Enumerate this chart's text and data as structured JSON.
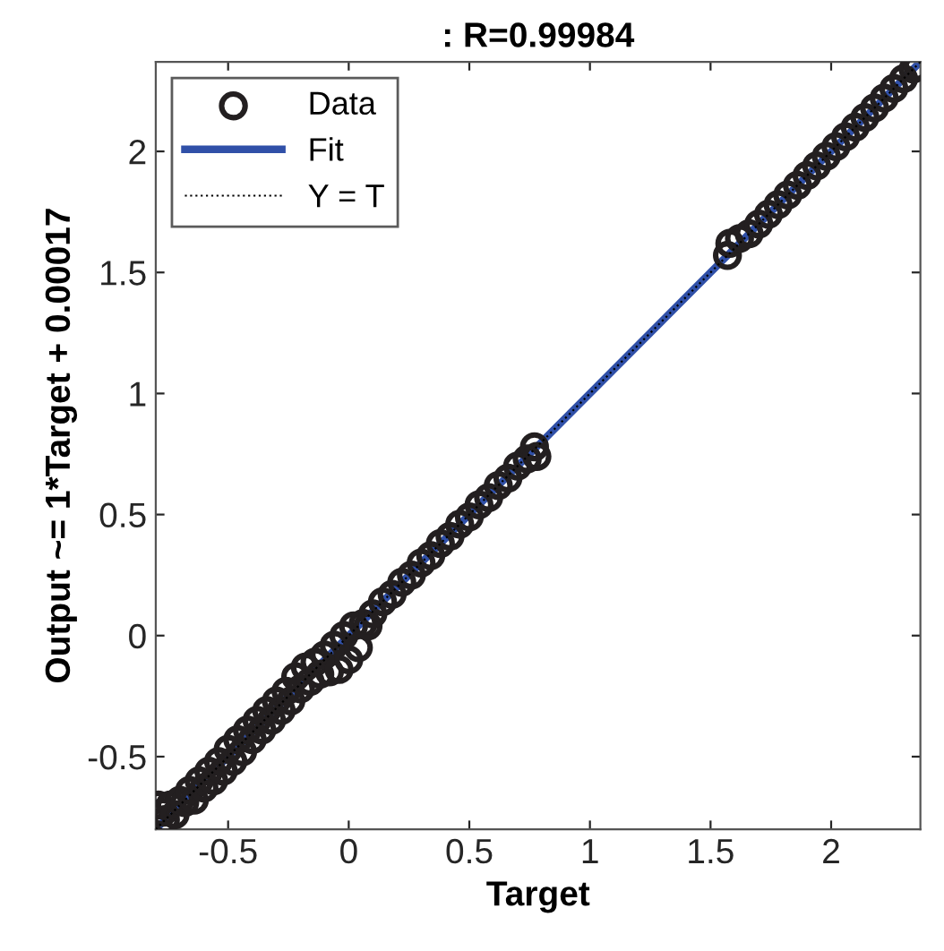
{
  "chart_data": {
    "type": "scatter",
    "title": ": R=0.99984",
    "xlabel": "Target",
    "ylabel": "Output ~= 1*Target + 0.00017",
    "xlim": [
      -0.8,
      2.37
    ],
    "ylim": [
      -0.8,
      2.37
    ],
    "xticks": [
      -0.5,
      0,
      0.5,
      1,
      1.5,
      2
    ],
    "yticks": [
      -0.5,
      0,
      0.5,
      1,
      1.5,
      2
    ],
    "grid": false,
    "legend": "top left",
    "series": [
      {
        "name": "Data",
        "marker": "circle",
        "color": "#231f20",
        "x": [
          -0.79,
          -0.77,
          -0.76,
          -0.74,
          -0.72,
          -0.7,
          -0.68,
          -0.66,
          -0.64,
          -0.62,
          -0.6,
          -0.58,
          -0.56,
          -0.54,
          -0.52,
          -0.5,
          -0.48,
          -0.46,
          -0.44,
          -0.42,
          -0.4,
          -0.38,
          -0.36,
          -0.34,
          -0.32,
          -0.3,
          -0.28,
          -0.26,
          -0.24,
          -0.22,
          -0.2,
          -0.18,
          -0.16,
          -0.14,
          -0.12,
          -0.1,
          -0.08,
          -0.06,
          -0.04,
          -0.02,
          0.0,
          0.02,
          0.04,
          0.06,
          0.08,
          0.1,
          0.14,
          0.18,
          0.22,
          0.26,
          0.3,
          0.34,
          0.38,
          0.42,
          0.46,
          0.5,
          0.54,
          0.58,
          0.62,
          0.66,
          0.7,
          0.74,
          0.77,
          0.78,
          1.57,
          1.58,
          1.62,
          1.66,
          1.7,
          1.74,
          1.78,
          1.82,
          1.86,
          1.9,
          1.94,
          1.98,
          2.02,
          2.06,
          2.1,
          2.14,
          2.18,
          2.22,
          2.26,
          2.3,
          2.34,
          2.36
        ],
        "values": [
          -0.7,
          -0.73,
          -0.76,
          -0.7,
          -0.74,
          -0.68,
          -0.69,
          -0.64,
          -0.68,
          -0.6,
          -0.63,
          -0.56,
          -0.6,
          -0.52,
          -0.56,
          -0.47,
          -0.52,
          -0.43,
          -0.48,
          -0.39,
          -0.43,
          -0.35,
          -0.39,
          -0.31,
          -0.35,
          -0.27,
          -0.31,
          -0.23,
          -0.27,
          -0.17,
          -0.22,
          -0.13,
          -0.19,
          -0.11,
          -0.16,
          -0.08,
          -0.15,
          -0.04,
          -0.14,
          0.0,
          -0.1,
          0.04,
          -0.05,
          0.05,
          0.04,
          0.09,
          0.14,
          0.17,
          0.22,
          0.25,
          0.3,
          0.33,
          0.38,
          0.41,
          0.46,
          0.49,
          0.54,
          0.57,
          0.62,
          0.65,
          0.7,
          0.73,
          0.78,
          0.74,
          1.57,
          1.62,
          1.64,
          1.66,
          1.7,
          1.74,
          1.78,
          1.82,
          1.86,
          1.9,
          1.94,
          1.98,
          2.02,
          2.06,
          2.1,
          2.14,
          2.18,
          2.22,
          2.26,
          2.3,
          2.34,
          2.35
        ]
      },
      {
        "name": "Fit",
        "type": "line",
        "line_style": "solid",
        "color": "#3050a8",
        "x": [
          -0.8,
          2.37
        ],
        "values": [
          -0.8,
          2.37
        ]
      },
      {
        "name": "Y = T",
        "type": "line",
        "line_style": "dotted",
        "color": "#000000",
        "x": [
          -0.8,
          2.37
        ],
        "values": [
          -0.8,
          2.37
        ]
      }
    ]
  }
}
